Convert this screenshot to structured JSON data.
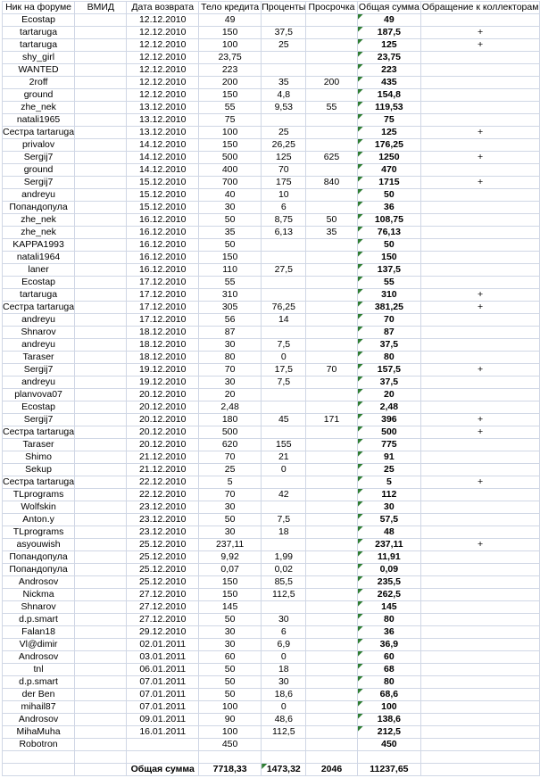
{
  "colors": {
    "gridline": "#d0d7e5",
    "warning_triangle": "#2e7d32",
    "text": "#000000",
    "background": "#ffffff"
  },
  "table": {
    "columns": [
      "Ник на форуме",
      "ВМИД",
      "Дата возврата",
      "Тело кредита",
      "Проценты",
      "Просрочка",
      "Общая сумма",
      "Обращение к коллекторам"
    ],
    "rows": [
      [
        "Ecostap",
        "",
        "12.12.2010",
        "49",
        "",
        "",
        "49",
        "",
        1
      ],
      [
        "tartaruga",
        "",
        "12.12.2010",
        "150",
        "37,5",
        "",
        "187,5",
        "+",
        1
      ],
      [
        "tartaruga",
        "",
        "12.12.2010",
        "100",
        "25",
        "",
        "125",
        "+",
        1
      ],
      [
        "shy_girl",
        "",
        "12.12.2010",
        "23,75",
        "",
        "",
        "23,75",
        "",
        1
      ],
      [
        "WANTED",
        "",
        "12.12.2010",
        "223",
        "",
        "",
        "223",
        "",
        1
      ],
      [
        "2roff",
        "",
        "12.12.2010",
        "200",
        "35",
        "200",
        "435",
        "",
        1
      ],
      [
        "ground",
        "",
        "12.12.2010",
        "150",
        "4,8",
        "",
        "154,8",
        "",
        1
      ],
      [
        "zhe_nek",
        "",
        "13.12.2010",
        "55",
        "9,53",
        "55",
        "119,53",
        "",
        1
      ],
      [
        "natali1965",
        "",
        "13.12.2010",
        "75",
        "",
        "",
        "75",
        "",
        1
      ],
      [
        "Сестра tartaruga",
        "",
        "13.12.2010",
        "100",
        "25",
        "",
        "125",
        "+",
        1
      ],
      [
        "privalov",
        "",
        "14.12.2010",
        "150",
        "26,25",
        "",
        "176,25",
        "",
        1
      ],
      [
        "Sergij7",
        "",
        "14.12.2010",
        "500",
        "125",
        "625",
        "1250",
        "+",
        1
      ],
      [
        "ground",
        "",
        "14.12.2010",
        "400",
        "70",
        "",
        "470",
        "",
        1
      ],
      [
        "Sergij7",
        "",
        "15.12.2010",
        "700",
        "175",
        "840",
        "1715",
        "+",
        1
      ],
      [
        "andreyu",
        "",
        "15.12.2010",
        "40",
        "10",
        "",
        "50",
        "",
        1
      ],
      [
        "Попандопула",
        "",
        "15.12.2010",
        "30",
        "6",
        "",
        "36",
        "",
        1
      ],
      [
        "zhe_nek",
        "",
        "16.12.2010",
        "50",
        "8,75",
        "50",
        "108,75",
        "",
        1
      ],
      [
        "zhe_nek",
        "",
        "16.12.2010",
        "35",
        "6,13",
        "35",
        "76,13",
        "",
        1
      ],
      [
        "KAPPA1993",
        "",
        "16.12.2010",
        "50",
        "",
        "",
        "50",
        "",
        1
      ],
      [
        "natali1964",
        "",
        "16.12.2010",
        "150",
        "",
        "",
        "150",
        "",
        1
      ],
      [
        "laner",
        "",
        "16.12.2010",
        "110",
        "27,5",
        "",
        "137,5",
        "",
        1
      ],
      [
        "Ecostap",
        "",
        "17.12.2010",
        "55",
        "",
        "",
        "55",
        "",
        1
      ],
      [
        "tartaruga",
        "",
        "17.12.2010",
        "310",
        "",
        "",
        "310",
        "+",
        1
      ],
      [
        "Сестра tartaruga",
        "",
        "17.12.2010",
        "305",
        "76,25",
        "",
        "381,25",
        "+",
        1
      ],
      [
        "andreyu",
        "",
        "17.12.2010",
        "56",
        "14",
        "",
        "70",
        "",
        1
      ],
      [
        "Shnarov",
        "",
        "18.12.2010",
        "87",
        "",
        "",
        "87",
        "",
        1
      ],
      [
        "andreyu",
        "",
        "18.12.2010",
        "30",
        "7,5",
        "",
        "37,5",
        "",
        1
      ],
      [
        "Taraser",
        "",
        "18.12.2010",
        "80",
        "0",
        "",
        "80",
        "",
        1
      ],
      [
        "Sergij7",
        "",
        "19.12.2010",
        "70",
        "17,5",
        "70",
        "157,5",
        "+",
        1
      ],
      [
        "andreyu",
        "",
        "19.12.2010",
        "30",
        "7,5",
        "",
        "37,5",
        "",
        1
      ],
      [
        "planvova07",
        "",
        "20.12.2010",
        "20",
        "",
        "",
        "20",
        "",
        1
      ],
      [
        "Ecostap",
        "",
        "20.12.2010",
        "2,48",
        "",
        "",
        "2,48",
        "",
        1
      ],
      [
        "Sergij7",
        "",
        "20.12.2010",
        "180",
        "45",
        "171",
        "396",
        "+",
        1
      ],
      [
        "Сестра tartaruga",
        "",
        "20.12.2010",
        "500",
        "",
        "",
        "500",
        "+",
        1
      ],
      [
        "Taraser",
        "",
        "20.12.2010",
        "620",
        "155",
        "",
        "775",
        "",
        1
      ],
      [
        "Shimo",
        "",
        "21.12.2010",
        "70",
        "21",
        "",
        "91",
        "",
        1
      ],
      [
        "Sekup",
        "",
        "21.12.2010",
        "25",
        "0",
        "",
        "25",
        "",
        1
      ],
      [
        "Сестра tartaruga",
        "",
        "22.12.2010",
        "5",
        "",
        "",
        "5",
        "+",
        1
      ],
      [
        "TLprograms",
        "",
        "22.12.2010",
        "70",
        "42",
        "",
        "112",
        "",
        1
      ],
      [
        "Wolfskin",
        "",
        "23.12.2010",
        "30",
        "",
        "",
        "30",
        "",
        1
      ],
      [
        "Anton.y",
        "",
        "23.12.2010",
        "50",
        "7,5",
        "",
        "57,5",
        "",
        1
      ],
      [
        "TLprograms",
        "",
        "23.12.2010",
        "30",
        "18",
        "",
        "48",
        "",
        1
      ],
      [
        "asyouwish",
        "",
        "25.12.2010",
        "237,11",
        "",
        "",
        "237,11",
        "+",
        1
      ],
      [
        "Попандопула",
        "",
        "25.12.2010",
        "9,92",
        "1,99",
        "",
        "11,91",
        "",
        1
      ],
      [
        "Попандопула",
        "",
        "25.12.2010",
        "0,07",
        "0,02",
        "",
        "0,09",
        "",
        1
      ],
      [
        "Androsov",
        "",
        "25.12.2010",
        "150",
        "85,5",
        "",
        "235,5",
        "",
        1
      ],
      [
        "Nickma",
        "",
        "27.12.2010",
        "150",
        "112,5",
        "",
        "262,5",
        "",
        1
      ],
      [
        "Shnarov",
        "",
        "27.12.2010",
        "145",
        "",
        "",
        "145",
        "",
        1
      ],
      [
        "d.p.smart",
        "",
        "27.12.2010",
        "50",
        "30",
        "",
        "80",
        "",
        1
      ],
      [
        "Falan18",
        "",
        "29.12.2010",
        "30",
        "6",
        "",
        "36",
        "",
        1
      ],
      [
        "Vl@dimir",
        "",
        "02.01.2011",
        "30",
        "6,9",
        "",
        "36,9",
        "",
        1
      ],
      [
        "Androsov",
        "",
        "03.01.2011",
        "60",
        "0",
        "",
        "60",
        "",
        1
      ],
      [
        "tnl",
        "",
        "06.01.2011",
        "50",
        "18",
        "",
        "68",
        "",
        1
      ],
      [
        "d.p.smart",
        "",
        "07.01.2011",
        "50",
        "30",
        "",
        "80",
        "",
        1
      ],
      [
        "der Ben",
        "",
        "07.01.2011",
        "50",
        "18,6",
        "",
        "68,6",
        "",
        1
      ],
      [
        "mihail87",
        "",
        "07.01.2011",
        "100",
        "0",
        "",
        "100",
        "",
        1
      ],
      [
        "Androsov",
        "",
        "09.01.2011",
        "90",
        "48,6",
        "",
        "138,6",
        "",
        1
      ],
      [
        "MihaMuha",
        "",
        "16.01.2011",
        "100",
        "112,5",
        "",
        "212,5",
        "",
        1
      ],
      [
        "Robotron",
        "",
        "",
        "450",
        "",
        "",
        "450",
        "",
        0
      ]
    ],
    "totals": {
      "label": "Общая сумма",
      "body": "7718,33",
      "interest": "1473,32",
      "overdue": "2046",
      "total": "11237,65"
    }
  }
}
